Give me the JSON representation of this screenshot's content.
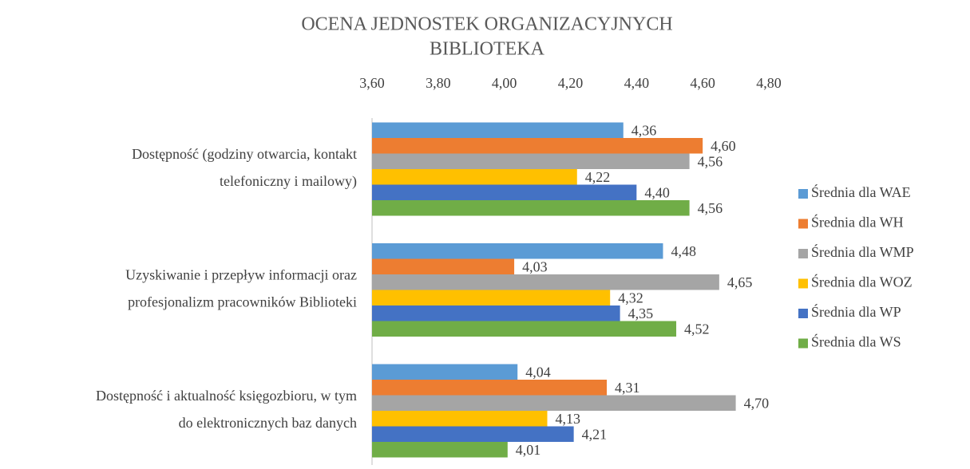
{
  "chart_data": {
    "type": "hbar",
    "title": [
      "OCENA JEDNOSTEK ORGANIZACYJNYCH",
      "BIBLIOTEKA"
    ],
    "categories": [
      [
        "Dostępność (godziny otwarcia, kontakt",
        "telefoniczny i mailowy)"
      ],
      [
        "Uzyskiwanie i przepływ informacji oraz",
        "profesjonalizm pracowników Biblioteki"
      ],
      [
        "Dostępność i aktualność księgozbioru, w tym",
        "do elektronicznych baz danych"
      ]
    ],
    "series": [
      {
        "name": "Średnia dla WAE",
        "color": "#5b9bd5",
        "values": [
          4.36,
          4.48,
          4.04
        ],
        "value_labels": [
          "4,36",
          "4,48",
          "4,04"
        ]
      },
      {
        "name": "Średnia dla WH",
        "color": "#ed7d31",
        "values": [
          4.6,
          4.03,
          4.31
        ],
        "value_labels": [
          "4,60",
          "4,03",
          "4,31"
        ]
      },
      {
        "name": "Średnia dla WMP",
        "color": "#a5a5a5",
        "values": [
          4.56,
          4.65,
          4.7
        ],
        "value_labels": [
          "4,56",
          "4,65",
          "4,70"
        ]
      },
      {
        "name": "Średnia dla WOZ",
        "color": "#ffc000",
        "values": [
          4.22,
          4.32,
          4.13
        ],
        "value_labels": [
          "4,22",
          "4,32",
          "4,13"
        ]
      },
      {
        "name": "Średnia dla WP",
        "color": "#4472c4",
        "values": [
          4.4,
          4.35,
          4.21
        ],
        "value_labels": [
          "4,40",
          "4,35",
          "4,21"
        ]
      },
      {
        "name": "Średnia dla WS",
        "color": "#70ad47",
        "values": [
          4.56,
          4.52,
          4.01
        ],
        "value_labels": [
          "4,56",
          "4,52",
          "4,01"
        ]
      }
    ],
    "xlim": [
      3.6,
      4.8
    ],
    "xticks": [
      {
        "value": 3.6,
        "label": "3,60"
      },
      {
        "value": 3.8,
        "label": "3,80"
      },
      {
        "value": 4.0,
        "label": "4,00"
      },
      {
        "value": 4.2,
        "label": "4,20"
      },
      {
        "value": 4.4,
        "label": "4,40"
      },
      {
        "value": 4.6,
        "label": "4,60"
      },
      {
        "value": 4.8,
        "label": "4,80"
      }
    ],
    "grid": false,
    "legend": "right"
  }
}
